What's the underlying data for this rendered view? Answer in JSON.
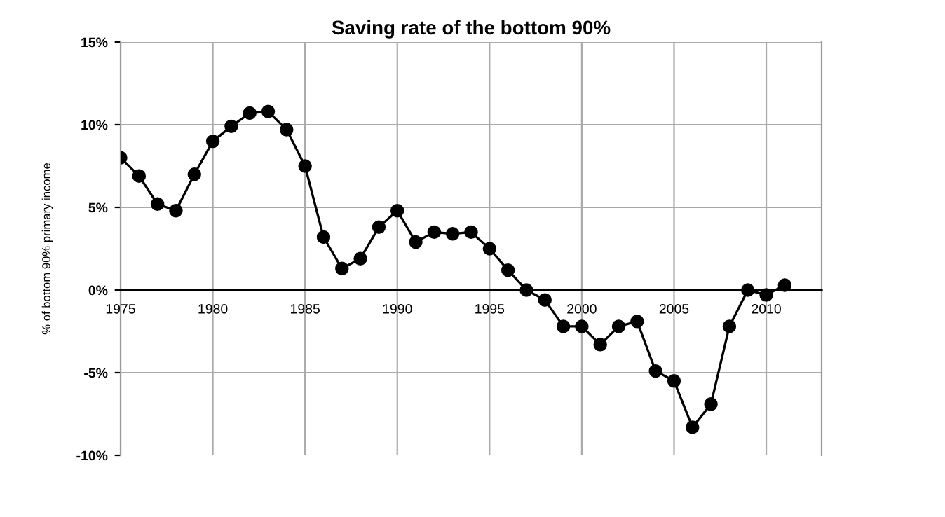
{
  "chart_data": {
    "type": "line",
    "title": "Saving rate of the bottom 90%",
    "ylabel": "% of bottom 90% primary income",
    "x": [
      1975,
      1976,
      1977,
      1978,
      1979,
      1980,
      1981,
      1982,
      1983,
      1984,
      1985,
      1986,
      1987,
      1988,
      1989,
      1990,
      1991,
      1992,
      1993,
      1994,
      1995,
      1996,
      1997,
      1998,
      1999,
      2000,
      2001,
      2002,
      2003,
      2004,
      2005,
      2006,
      2007,
      2008,
      2009,
      2010,
      2011
    ],
    "series": [
      {
        "color": "#000000",
        "values": [
          8.0,
          6.9,
          5.2,
          4.8,
          7.0,
          9.0,
          9.9,
          10.7,
          10.8,
          9.7,
          7.5,
          3.2,
          1.3,
          1.9,
          3.8,
          4.8,
          2.9,
          3.5,
          3.4,
          3.5,
          2.5,
          1.2,
          0.0,
          -0.6,
          -2.2,
          -2.2,
          -3.3,
          -2.2,
          -1.9,
          -4.9,
          -5.5,
          -8.3,
          -6.9,
          -2.2,
          0.0,
          -0.3,
          0.3
        ]
      }
    ],
    "xlim": [
      1975,
      2013
    ],
    "xticks": [
      1975,
      1980,
      1985,
      1990,
      1995,
      2000,
      2005,
      2010
    ],
    "ylim": [
      -10,
      15
    ],
    "yticks": [
      {
        "value": -10,
        "label": "-10%"
      },
      {
        "value": -5,
        "label": "-5%"
      },
      {
        "value": 0,
        "label": "0%"
      },
      {
        "value": 5,
        "label": "5%"
      },
      {
        "value": 10,
        "label": "10%"
      },
      {
        "value": 15,
        "label": "15%"
      }
    ],
    "grid": true,
    "marker": "circle",
    "line_style": "solid"
  }
}
